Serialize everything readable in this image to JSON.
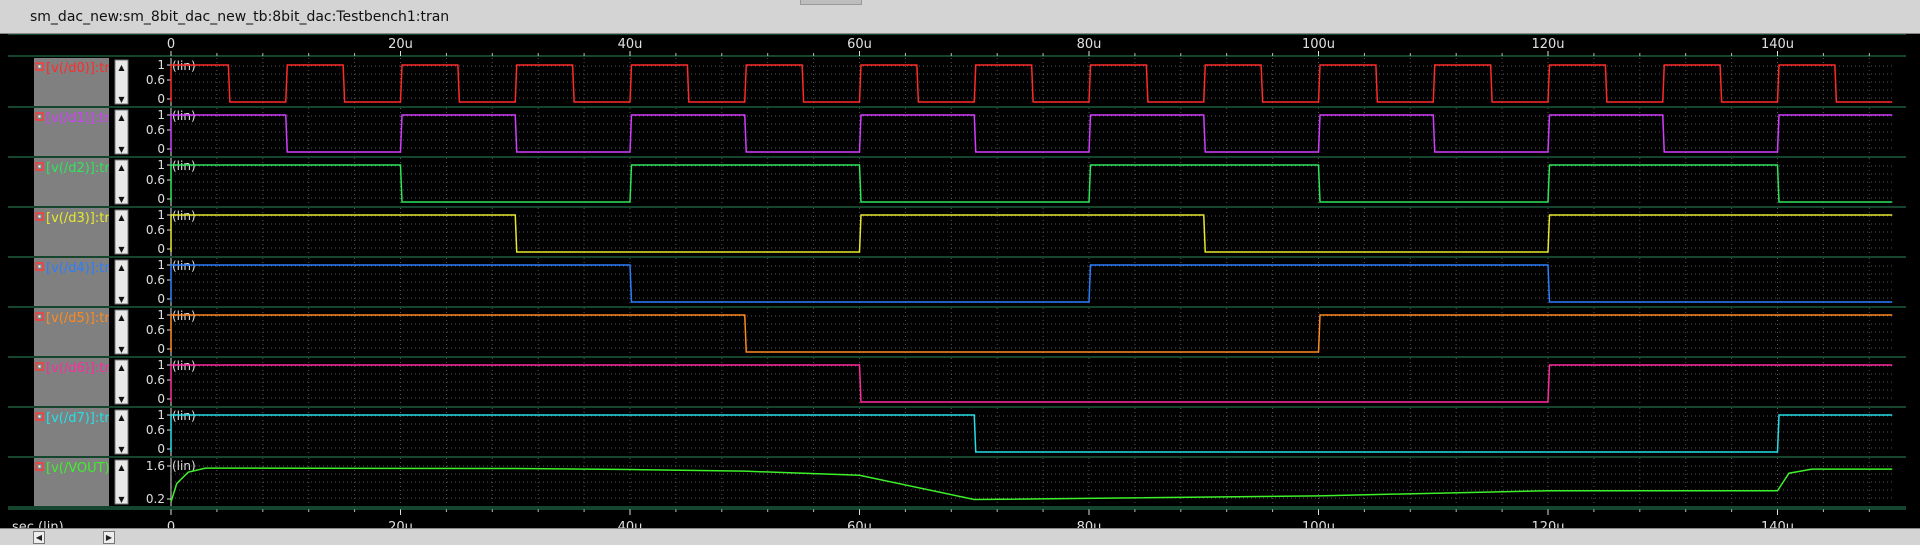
{
  "window": {
    "title": "sm_dac_new:sm_8bit_dac_new_tb:8bit_dac:Testbench1:tran"
  },
  "axis": {
    "unit_label": "sec (lin)",
    "ticks": [
      "0",
      "20u",
      "40u",
      "60u",
      "80u",
      "100u",
      "120u",
      "140u"
    ]
  },
  "traces": [
    {
      "label": "v(/d0)",
      "color": "#ff2a2a"
    },
    {
      "label": "v(/d1)",
      "color": "#d23cff"
    },
    {
      "label": "v(/d2)",
      "color": "#2ee65a"
    },
    {
      "label": "v(/d3)",
      "color": "#e8e82a"
    },
    {
      "label": "v(/d4)",
      "color": "#2a7dff"
    },
    {
      "label": "v(/d5)",
      "color": "#ff8a1e"
    },
    {
      "label": "v(/d6)",
      "color": "#ff2aa0"
    },
    {
      "label": "v(/d7)",
      "color": "#22e0e8"
    },
    {
      "label": "v(/VOUT)",
      "color": "#3ef02a"
    }
  ],
  "scale_label": "(lin)",
  "digital_y_ticks": [
    "1",
    "0.6",
    "0"
  ],
  "analog_y_ticks": [
    "1.6",
    "0.2"
  ],
  "chart_data": {
    "type": "line",
    "xlabel": "sec (lin)",
    "x_unit": "us",
    "xlim": [
      0,
      150
    ],
    "x_ticks": [
      "0",
      "20u",
      "40u",
      "60u",
      "80u",
      "100u",
      "120u",
      "140u"
    ],
    "series": [
      {
        "name": "v(/d0)",
        "kind": "square",
        "period_us": 10,
        "start_level": 1,
        "ylim": [
          0,
          1
        ]
      },
      {
        "name": "v(/d1)",
        "kind": "square",
        "period_us": 20,
        "start_level": 1,
        "ylim": [
          0,
          1
        ]
      },
      {
        "name": "v(/d2)",
        "kind": "square",
        "period_us": 40,
        "start_level": 1,
        "ylim": [
          0,
          1
        ]
      },
      {
        "name": "v(/d3)",
        "kind": "square",
        "period_us": 60,
        "start_level": 1,
        "ylim": [
          0,
          1
        ]
      },
      {
        "name": "v(/d4)",
        "kind": "square",
        "period_us": 80,
        "start_level": 1,
        "ylim": [
          0,
          1
        ]
      },
      {
        "name": "v(/d5)",
        "kind": "square",
        "period_us": 100,
        "start_level": 1,
        "ylim": [
          0,
          1
        ]
      },
      {
        "name": "v(/d6)",
        "kind": "square",
        "period_us": 120,
        "start_level": 1,
        "ylim": [
          0,
          1
        ]
      },
      {
        "name": "v(/d7)",
        "kind": "square",
        "period_us": 140,
        "start_level": 1,
        "ylim": [
          0,
          1
        ]
      },
      {
        "name": "v(/VOUT)",
        "kind": "analog",
        "ylim": [
          0,
          1.8
        ],
        "x": [
          0,
          0.5,
          1.5,
          3,
          30,
          40,
          50,
          60,
          70,
          100,
          120,
          140,
          141,
          143,
          150
        ],
        "y": [
          0.0,
          0.9,
          1.45,
          1.65,
          1.63,
          1.58,
          1.5,
          1.3,
          0.12,
          0.3,
          0.55,
          0.55,
          1.4,
          1.6,
          1.6
        ]
      }
    ]
  }
}
